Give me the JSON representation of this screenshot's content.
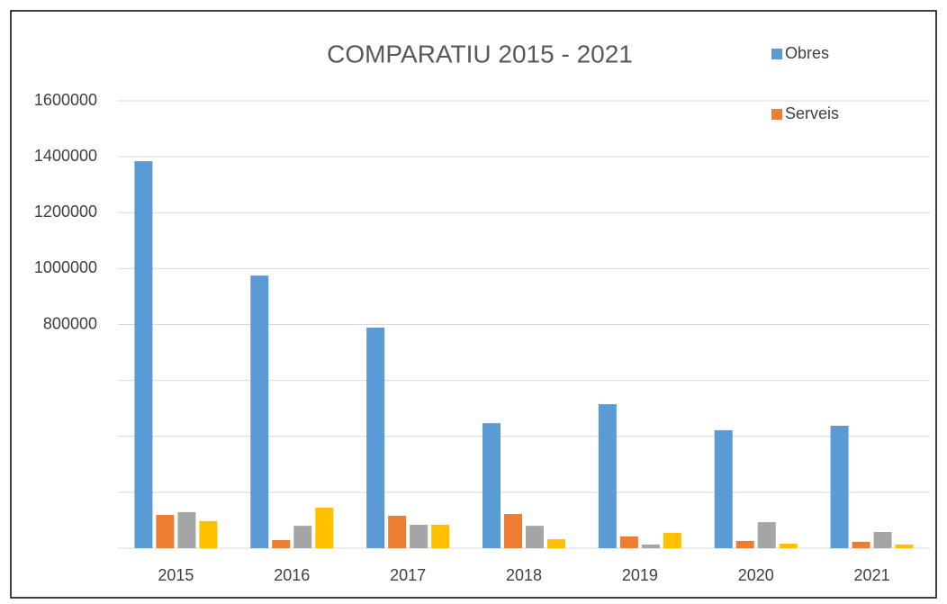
{
  "chart_data": {
    "type": "bar",
    "title": "COMPARATIU 2015 - 2021",
    "categories": [
      "2015",
      "2016",
      "2017",
      "2018",
      "2019",
      "2020",
      "2021"
    ],
    "series": [
      {
        "name": "Obres",
        "color": "#5b9bd5",
        "values": [
          1384000,
          975000,
          789000,
          447000,
          515000,
          422000,
          438000
        ]
      },
      {
        "name": "Serveis",
        "color": "#ed7d31",
        "values": [
          119000,
          29000,
          116000,
          122000,
          42000,
          26000,
          23000
        ]
      },
      {
        "name": null,
        "color": "#a5a5a5",
        "values": [
          129000,
          80000,
          84000,
          80000,
          13000,
          93000,
          58000
        ]
      },
      {
        "name": null,
        "color": "#ffc000",
        "values": [
          97000,
          145000,
          84000,
          32000,
          55000,
          16000,
          13000
        ]
      }
    ],
    "ylim": [
      0,
      1600000
    ],
    "yticks": [
      {
        "value": 0,
        "label": null
      },
      {
        "value": 200000,
        "label": null
      },
      {
        "value": 400000,
        "label": null
      },
      {
        "value": 600000,
        "label": null
      },
      800000,
      1000000,
      1200000,
      1400000,
      1600000
    ],
    "grid": true,
    "legend": "top-right"
  }
}
